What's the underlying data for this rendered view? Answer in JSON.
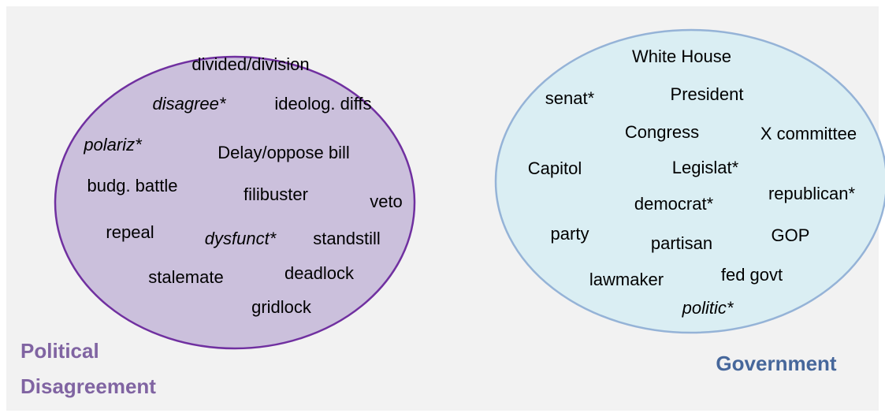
{
  "groups": [
    {
      "label": [
        "Political",
        "Disagreement"
      ],
      "terms": [
        "divided/division",
        "disagree*",
        "ideolog. diffs",
        "polariz*",
        "Delay/oppose bill",
        "budg. battle",
        "filibuster",
        "veto",
        "repeal",
        "dysfunct*",
        "standstill",
        "stalemate",
        "deadlock",
        "gridlock"
      ]
    },
    {
      "label": [
        "Government"
      ],
      "terms": [
        "White House",
        "senat*",
        "President",
        "Congress",
        "X committee",
        "Capitol",
        "Legislat*",
        "democrat*",
        "republican*",
        "party",
        "partisan",
        "GOP",
        "lawmaker",
        "fed govt",
        "politic*"
      ]
    }
  ]
}
